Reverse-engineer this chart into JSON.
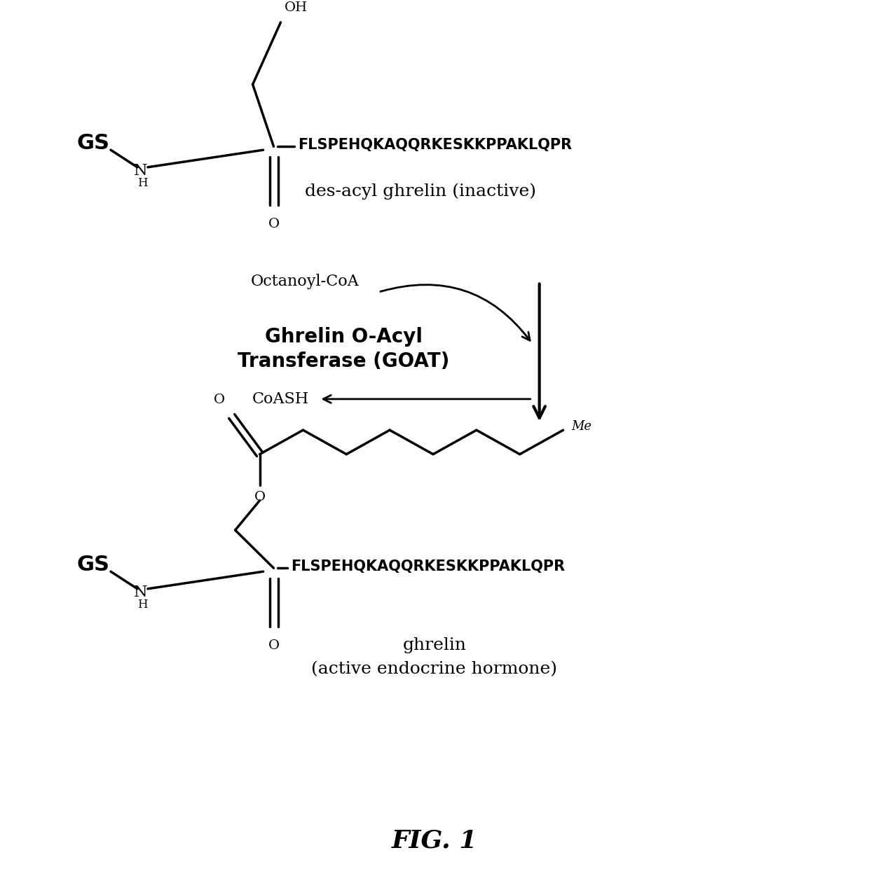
{
  "bg_color": "#ffffff",
  "text_color": "#000000",
  "fig_width": 12.4,
  "fig_height": 12.61,
  "title": "FIG. 1",
  "molecule1_label": "des-acyl ghrelin (inactive)",
  "gs_label": "GS",
  "peptide_seq": "FLSPEHQKAQQRKESKKPPAKLQPR",
  "enzyme_label1": "Ghrelin O-Acyl",
  "enzyme_label2": "Transferase (GOAT)",
  "octanoyl_label": "Octanoyl-CoA",
  "coash_label": "CoASH",
  "me_label": "Me"
}
